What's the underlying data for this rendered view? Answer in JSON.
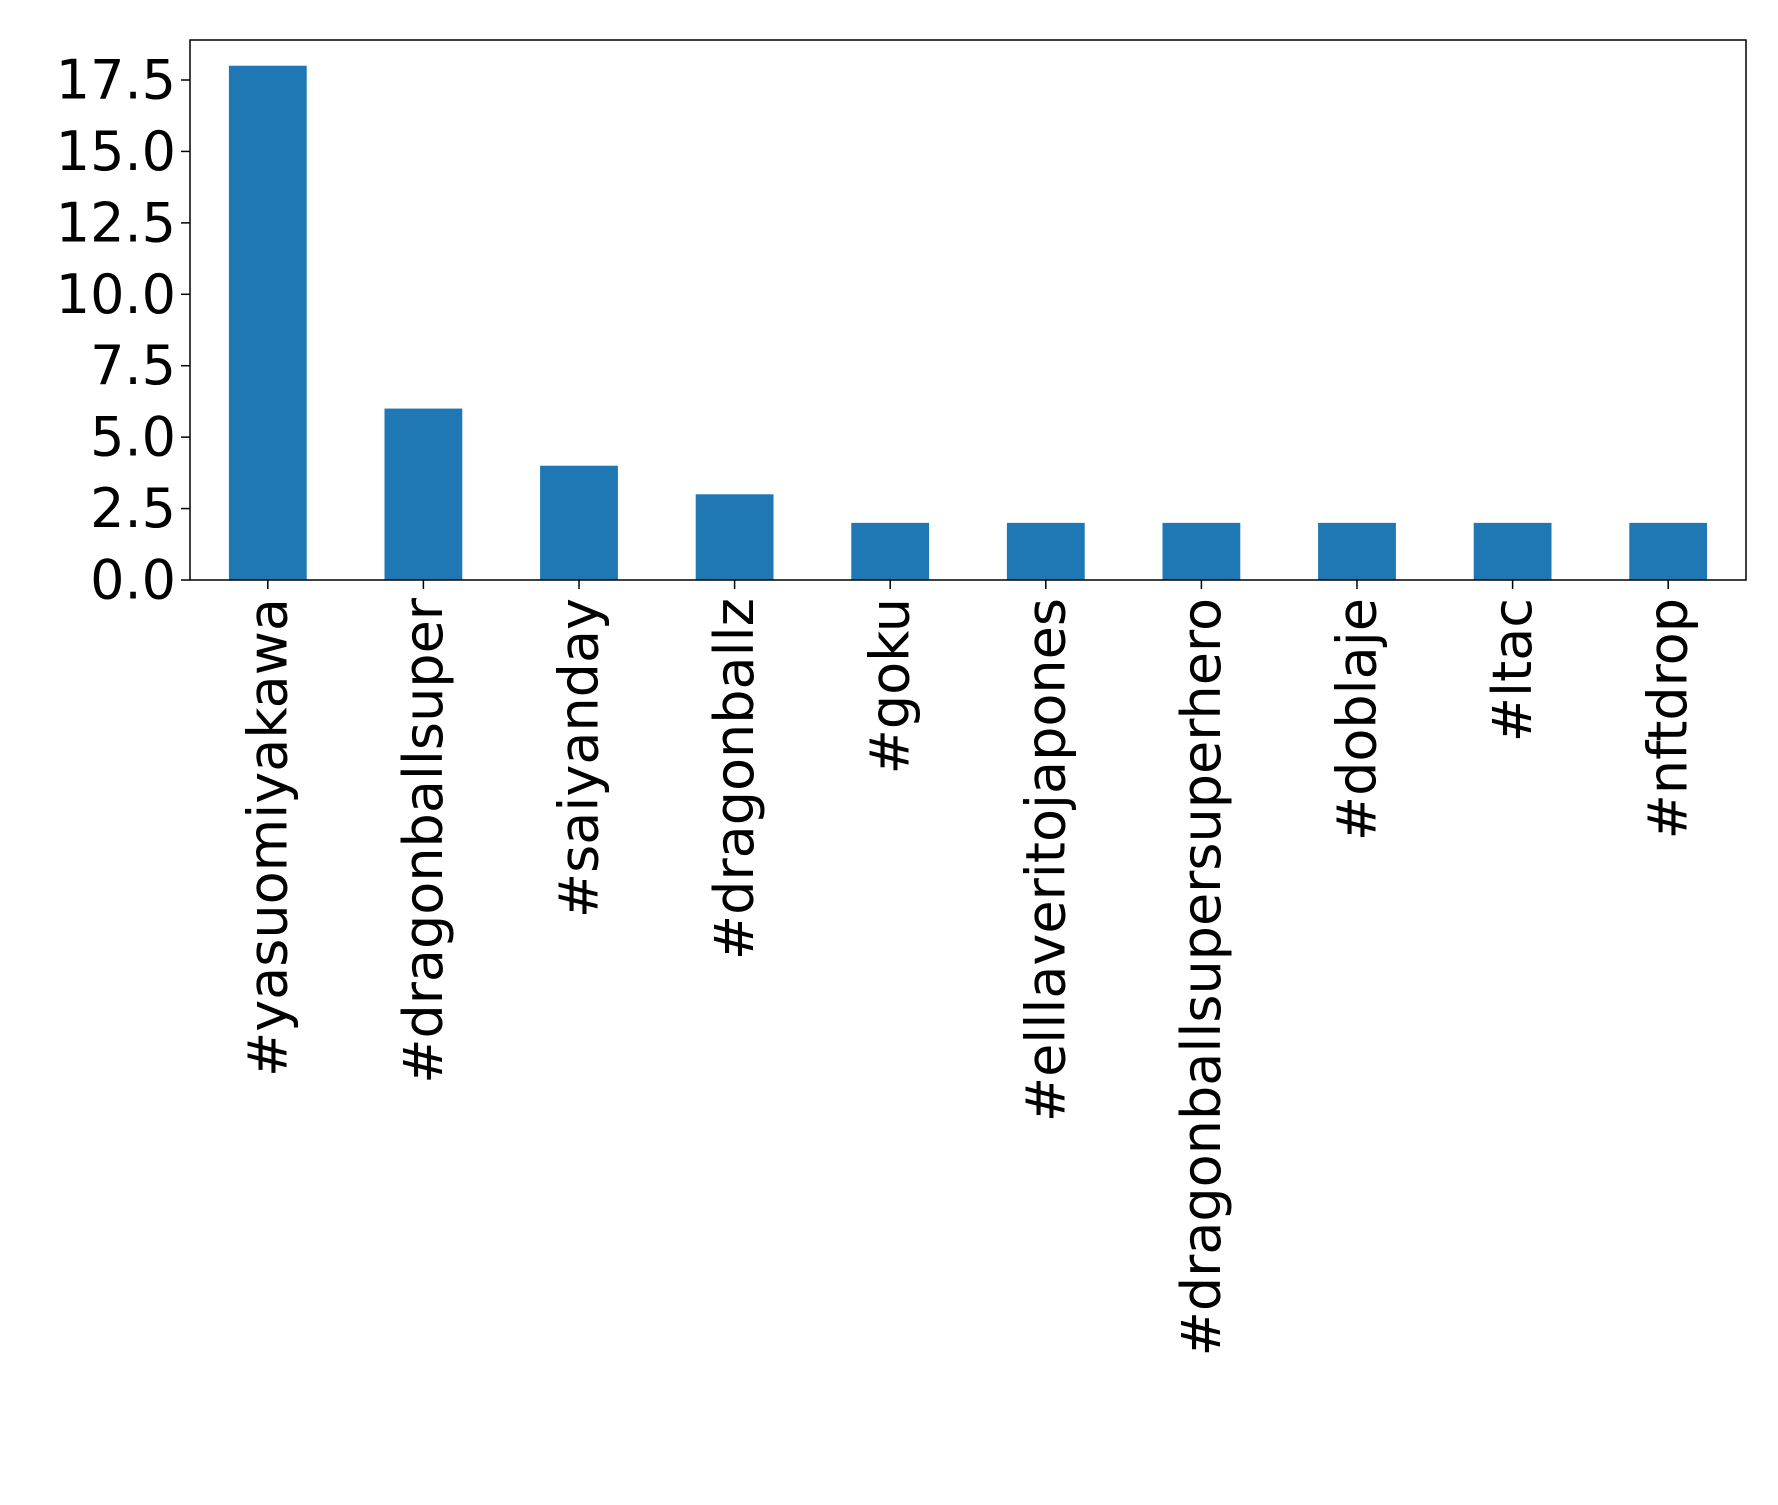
{
  "chart_data": {
    "type": "bar",
    "title": "",
    "xlabel": "",
    "ylabel": "",
    "categories": [
      "#yasuomiyakawa",
      "#dragonballsuper",
      "#saiyanday",
      "#dragonballz",
      "#goku",
      "#elllaveritojapones",
      "#dragonballsupersuperhero",
      "#doblaje",
      "#ltac",
      "#nftdrop"
    ],
    "values": [
      18,
      6,
      4,
      3,
      2,
      2,
      2,
      2,
      2,
      2
    ],
    "yticks": [
      "0.0",
      "2.5",
      "5.0",
      "7.5",
      "10.0",
      "12.5",
      "15.0",
      "17.5"
    ],
    "ytick_values": [
      0,
      2.5,
      5,
      7.5,
      10,
      12.5,
      15,
      17.5
    ],
    "ylim": [
      0,
      18.9
    ],
    "bar_color": "#1f77b4",
    "grid": false,
    "legend": "none"
  }
}
